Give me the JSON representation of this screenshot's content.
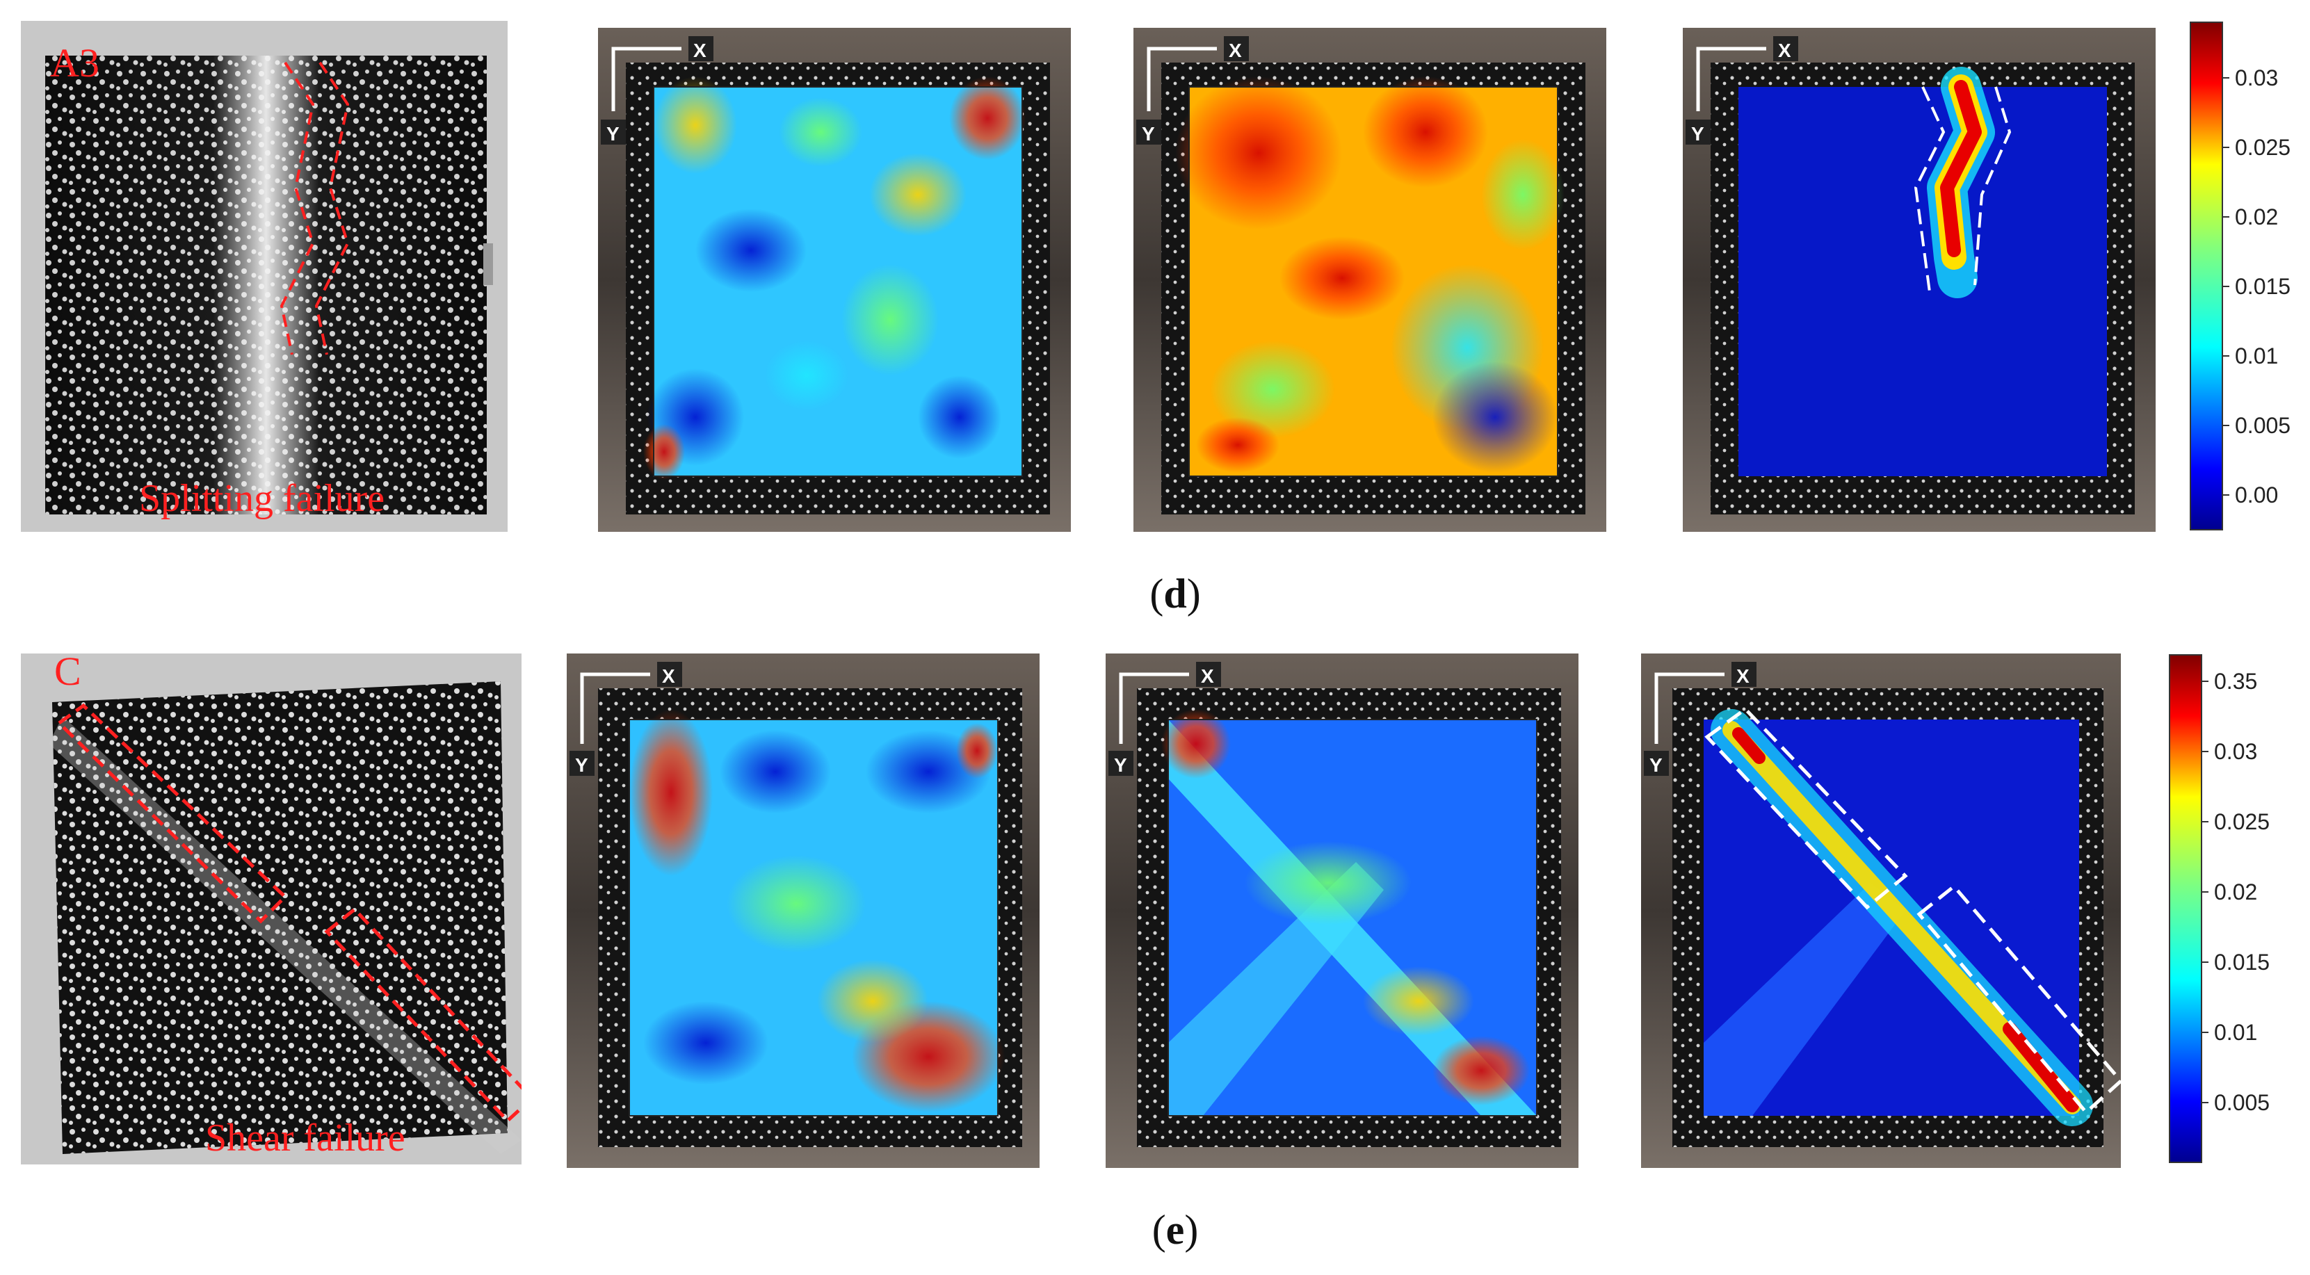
{
  "row_d": {
    "specimen_label": "A3",
    "failure_label": "Splitting failure",
    "axis_x": "X",
    "axis_y": "Y",
    "caption_letter": "d",
    "colorbar_ticks": [
      "0.03",
      "0.025",
      "0.02",
      "0.015",
      "0.01",
      "0.005",
      "0.00"
    ]
  },
  "row_e": {
    "specimen_label": "C",
    "failure_label": "Shear failure",
    "axis_x": "X",
    "axis_y": "Y",
    "caption_letter": "e",
    "colorbar_ticks": [
      "0.35",
      "0.03",
      "0.025",
      "0.02",
      "0.015",
      "0.01",
      "0.005"
    ]
  },
  "colors": {
    "failure_annotation": "#ff2020",
    "jet_low": "#00008f",
    "jet_high": "#800000",
    "frame_dark": "#1c1c1c"
  }
}
